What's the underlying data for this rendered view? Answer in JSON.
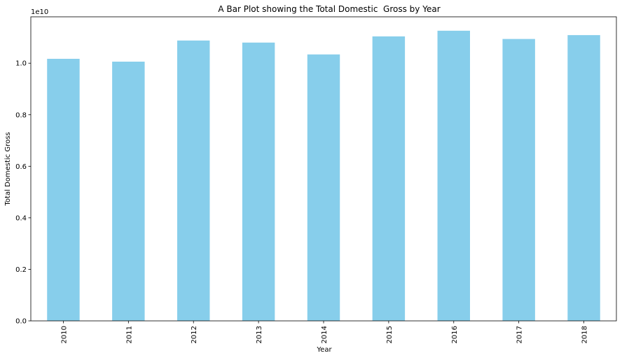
{
  "chart_data": {
    "type": "bar",
    "title": "A Bar Plot showing the Total Domestic  Gross by Year",
    "xlabel": "Year",
    "ylabel": "Total Domestic Gross",
    "y_offset_label": "1e10",
    "categories": [
      "2010",
      "2011",
      "2012",
      "2013",
      "2014",
      "2015",
      "2016",
      "2017",
      "2018"
    ],
    "values": [
      1.017,
      1.006,
      1.088,
      1.08,
      1.034,
      1.104,
      1.126,
      1.094,
      1.109
    ],
    "ylim": [
      0,
      1.18
    ],
    "yticks": [
      0.0,
      0.2,
      0.4,
      0.6,
      0.8,
      1.0
    ],
    "ytick_labels": [
      "0.0",
      "0.2",
      "0.4",
      "0.6",
      "0.8",
      "1.0"
    ],
    "bar_color": "#87ceeb",
    "grid": false,
    "legend": "none"
  }
}
